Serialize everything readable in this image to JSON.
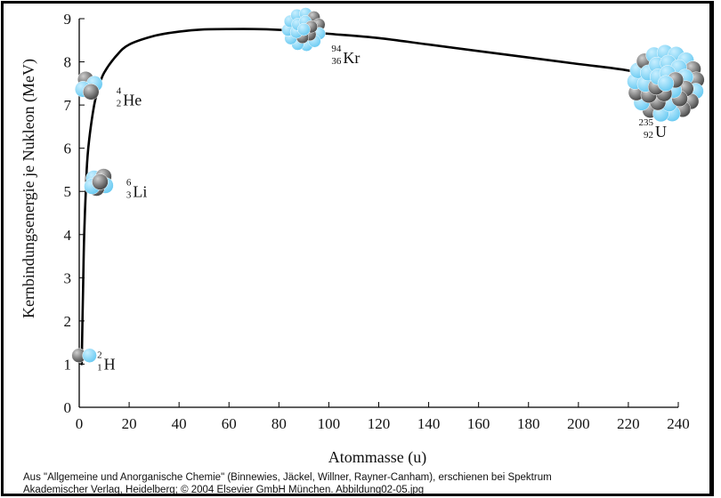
{
  "chart_data": {
    "type": "line",
    "title": "",
    "xlabel": "Atommasse (u)",
    "ylabel": "Kernbindungsenergie je Nukleon (MeV)",
    "xlim": [
      0,
      240
    ],
    "ylim": [
      0,
      9
    ],
    "xticks": [
      "0",
      "20",
      "40",
      "60",
      "80",
      "100",
      "120",
      "140",
      "160",
      "180",
      "200",
      "220",
      "240"
    ],
    "yticks": [
      "0",
      "1",
      "2",
      "3",
      "4",
      "5",
      "6",
      "7",
      "8",
      "9"
    ],
    "grid": false,
    "legend": "none",
    "series": [
      {
        "x": [
          1,
          1.5,
          2,
          3,
          4,
          6,
          8,
          10,
          15,
          20,
          30,
          40,
          50,
          60,
          70,
          80,
          90,
          100,
          120,
          140,
          160,
          180,
          200,
          220,
          235
        ],
        "y": [
          1.0,
          2.6,
          4.0,
          5.5,
          6.2,
          7.0,
          7.45,
          7.75,
          8.15,
          8.4,
          8.6,
          8.7,
          8.75,
          8.76,
          8.76,
          8.74,
          8.7,
          8.65,
          8.55,
          8.4,
          8.25,
          8.1,
          7.95,
          7.8,
          7.6
        ]
      }
    ],
    "nuclides": [
      {
        "mass": "2",
        "charge": "1",
        "symbol": "H",
        "x": 2,
        "y": 1.2
      },
      {
        "mass": "4",
        "charge": "2",
        "symbol": "He",
        "x": 4,
        "y": 7.45
      },
      {
        "mass": "6",
        "charge": "3",
        "symbol": "Li",
        "x": 8,
        "y": 5.2
      },
      {
        "mass": "94",
        "charge": "36",
        "symbol": "Kr",
        "x": 90,
        "y": 8.75
      },
      {
        "mass": "235",
        "charge": "92",
        "symbol": "U",
        "x": 235,
        "y": 7.5
      }
    ],
    "colors": {
      "proton": "#6ccbf2",
      "neutron": "#8a8a8a",
      "curve": "#000000"
    }
  },
  "credit": {
    "line1": "Aus \"Allgemeine und Anorganische Chemie\" (Binnewies, Jäckel, Willner, Rayner-Canham), erschienen bei Spektrum",
    "line2": "Akademischer Verlag, Heidelberg; © 2004 Elsevier GmbH München. Abbildung02-05.jpg"
  }
}
